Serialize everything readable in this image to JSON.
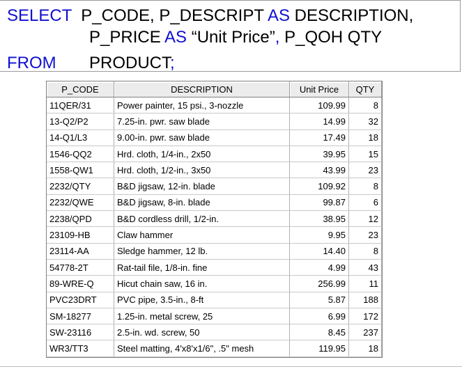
{
  "sql": {
    "line1_kw": "SELECT",
    "line1_a": "P_CODE, P_DESCRIPT ",
    "line1_as": "AS",
    "line1_b": " DESCRIPTION,",
    "line2_a": "P_PRICE ",
    "line2_as": "AS",
    "line2_b": " “Unit Price”",
    "line2_comma": ",",
    "line2_c": " P_QOH QTY",
    "line3_kw": "FROM",
    "line3_a": "PRODUCT",
    "line3_semi": ";"
  },
  "grid": {
    "columns": [
      "P_CODE",
      "DESCRIPTION",
      "Unit Price",
      "QTY"
    ],
    "rows": [
      [
        "11QER/31",
        "Power painter, 15 psi., 3-nozzle",
        "109.99",
        "8"
      ],
      [
        "13-Q2/P2",
        "7.25-in. pwr. saw blade",
        "14.99",
        "32"
      ],
      [
        "14-Q1/L3",
        "9.00-in. pwr. saw blade",
        "17.49",
        "18"
      ],
      [
        "1546-QQ2",
        "Hrd. cloth, 1/4-in., 2x50",
        "39.95",
        "15"
      ],
      [
        "1558-QW1",
        "Hrd. cloth, 1/2-in., 3x50",
        "43.99",
        "23"
      ],
      [
        "2232/QTY",
        "B&D jigsaw, 12-in. blade",
        "109.92",
        "8"
      ],
      [
        "2232/QWE",
        "B&D jigsaw, 8-in. blade",
        "99.87",
        "6"
      ],
      [
        "2238/QPD",
        "B&D cordless drill, 1/2-in.",
        "38.95",
        "12"
      ],
      [
        "23109-HB",
        "Claw hammer",
        "9.95",
        "23"
      ],
      [
        "23114-AA",
        "Sledge hammer, 12 lb.",
        "14.40",
        "8"
      ],
      [
        "54778-2T",
        "Rat-tail file, 1/8-in. fine",
        "4.99",
        "43"
      ],
      [
        "89-WRE-Q",
        "Hicut chain saw, 16 in.",
        "256.99",
        "11"
      ],
      [
        "PVC23DRT",
        "PVC pipe, 3.5-in., 8-ft",
        "5.87",
        "188"
      ],
      [
        "SM-18277",
        "1.25-in. metal screw, 25",
        "6.99",
        "172"
      ],
      [
        "SW-23116",
        "2.5-in. wd. screw, 50",
        "8.45",
        "237"
      ],
      [
        "WR3/TT3",
        "Steel matting, 4'x8'x1/6\", .5\" mesh",
        "119.95",
        "18"
      ]
    ]
  },
  "colors": {
    "keyword": "#1010d0",
    "text": "#000000"
  }
}
